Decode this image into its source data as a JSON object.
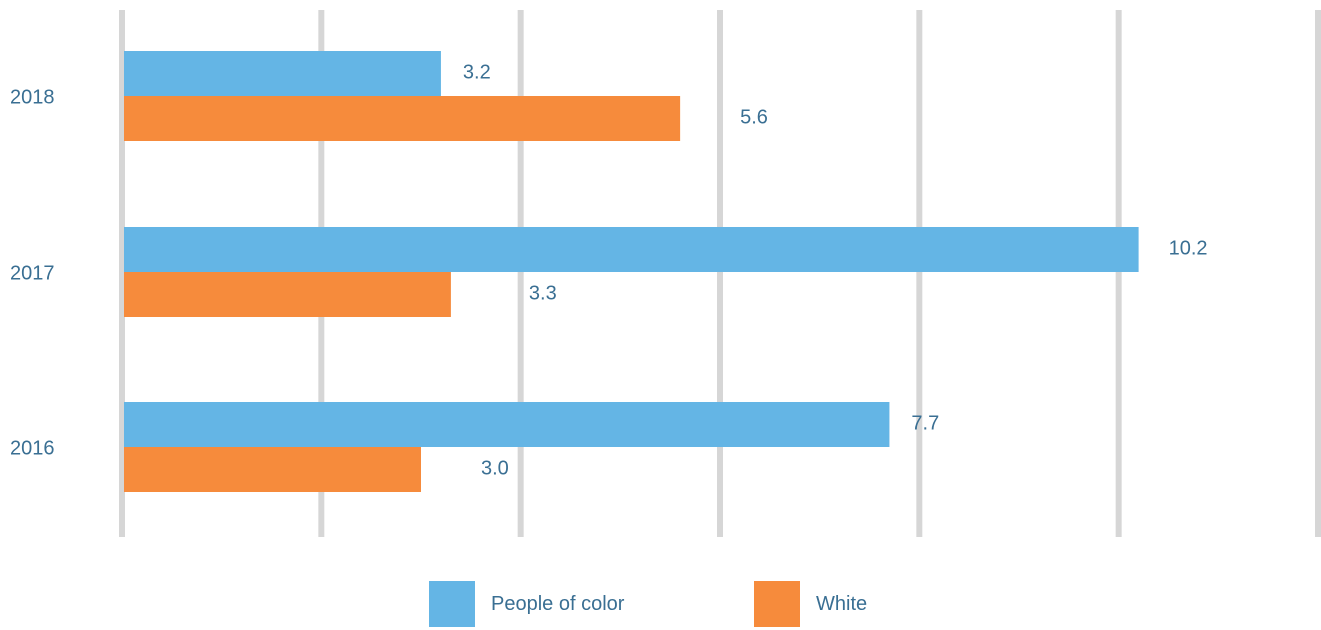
{
  "chart_data": {
    "type": "bar",
    "orientation": "horizontal",
    "categories": [
      "2018",
      "2017",
      "2016"
    ],
    "series": [
      {
        "name": "People of color",
        "values": [
          3.2,
          10.2,
          7.7
        ],
        "color": "#64b5e5"
      },
      {
        "name": "White",
        "values": [
          5.6,
          3.3,
          3.0
        ],
        "color": "#f68b3c"
      }
    ],
    "data_labels": [
      [
        "3.2",
        "10.2",
        "7.7"
      ],
      [
        "5.6",
        "3.3",
        "3.0"
      ]
    ],
    "title": "",
    "xlabel": "",
    "ylabel": "",
    "xlim": [
      0,
      12
    ],
    "grid": true,
    "grid_color": "#d6d6d6",
    "label_color": "#3a6f93",
    "legend_position": "bottom"
  }
}
